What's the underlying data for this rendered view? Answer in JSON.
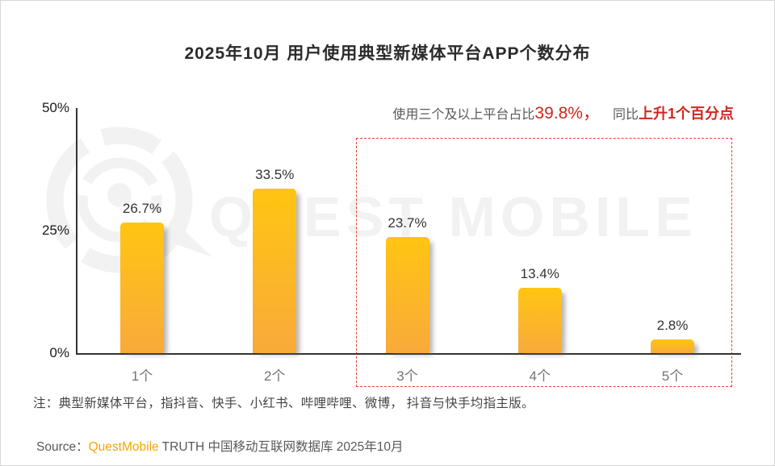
{
  "title": "2025年10月 用户使用典型新媒体平台APP个数分布",
  "annotation": {
    "prefix": "使用三个及以上平台占比",
    "highlight_value": "39.8%，",
    "middle": "同比",
    "highlight_trend": "上升1个百分点"
  },
  "watermark": {
    "text": "QUEST MOBILE"
  },
  "chart_data": {
    "type": "bar",
    "title": "2025年10月 用户使用典型新媒体平台APP个数分布",
    "categories": [
      "1个",
      "2个",
      "3个",
      "4个",
      "5个"
    ],
    "values": [
      26.7,
      33.5,
      23.7,
      13.4,
      2.8
    ],
    "value_labels": [
      "26.7%",
      "33.5%",
      "23.7%",
      "13.4%",
      "2.8%"
    ],
    "yticks": [
      "0%",
      "25%",
      "50%"
    ],
    "ylim": [
      0,
      50
    ],
    "xlabel": "",
    "ylabel": "",
    "grid": "off",
    "legend": "none",
    "bar_color_top": "#ffc512",
    "bar_color_bottom": "#f9aa3b",
    "highlight_box_categories": [
      "3个",
      "4个",
      "5个"
    ],
    "highlight_box_color": "#e0442e"
  },
  "colors": {
    "accent_red": "#d2261f",
    "brand_orange": "#f7a600",
    "gray_text": "#595959"
  },
  "note": "注：典型新媒体平台，指抖音、快手、小红书、哔哩哔哩、微博， 抖音与快手均指主版。",
  "source": {
    "label": "Source：",
    "brand": "QuestMobile",
    "rest": " TRUTH 中国移动互联网数据库 2025年10月"
  }
}
